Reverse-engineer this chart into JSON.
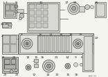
{
  "bg_color": "#f5f5f0",
  "fig_width": 1.6,
  "fig_height": 1.12,
  "dpi": 100,
  "image_data": null
}
